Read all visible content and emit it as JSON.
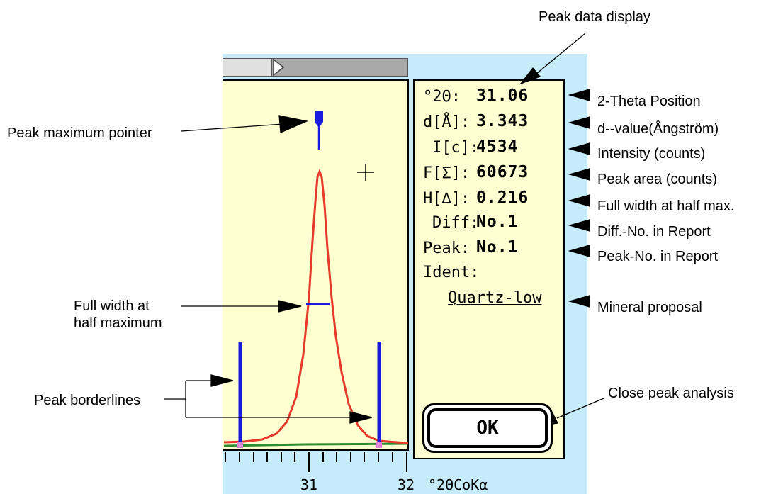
{
  "callouts": {
    "peak_data_display": "Peak data display",
    "peak_max_pointer": "Peak maximum pointer",
    "fwhm_line1": "Full width at",
    "fwhm_line2": "half maximum",
    "peak_borderlines": "Peak borderlines",
    "two_theta_position": "2-Theta Position",
    "d_value": "d--value(Ångström)",
    "intensity": "Intensity (counts)",
    "peak_area": "Peak area (counts)",
    "full_width_half_max": "Full width at  half max.",
    "diff_no": "Diff.-No. in Report",
    "peak_no": "Peak-No. in Report",
    "mineral_proposal": "Mineral proposal",
    "close_peak_analysis": "Close peak analysis"
  },
  "panel": {
    "rows": [
      {
        "label": "°2Θ:",
        "value": "31.06"
      },
      {
        "label": "d[Å]:",
        "value": "3.343"
      },
      {
        "label": "I[c]:",
        "value": "4534"
      },
      {
        "label": "F[Σ]:",
        "value": "60673"
      },
      {
        "label": "H[∆]:",
        "value": "0.216"
      },
      {
        "label": "Diff:",
        "value": "No.1"
      },
      {
        "label": "Peak:",
        "value": "No.1"
      },
      {
        "label": "Ident:",
        "value": ""
      }
    ],
    "mineral": "Quartz-low",
    "ok_label": "OK"
  },
  "axis": {
    "tick_31": "31",
    "tick_32": "32",
    "unit": "°2ΘCoKα"
  },
  "colors": {
    "plot_bg": "#ffffd2",
    "outer_bg": "#c6ecfa",
    "profile": "#e63a2a",
    "border_lines": "#1a1adf",
    "background_line": "#2e8b2e"
  }
}
